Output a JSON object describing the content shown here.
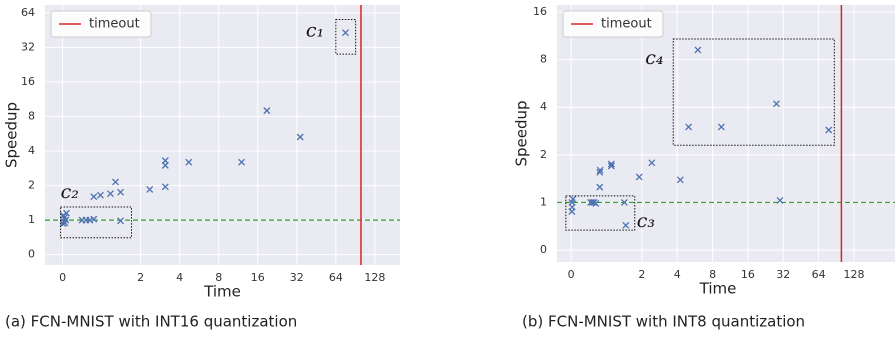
{
  "chart_data": [
    {
      "type": "scatter",
      "caption": "(a) FCN-MNIST with INT16 quantization",
      "xlabel": "Time",
      "ylabel": "Speedup",
      "xscale": "symlog",
      "yscale": "symlog",
      "grid": true,
      "legend": "upper left",
      "xlim": [
        -0.45,
        200
      ],
      "ylim": [
        -0.3,
        75
      ],
      "xticks": [
        0,
        2,
        4,
        8,
        16,
        32,
        64,
        128
      ],
      "yticks": [
        0,
        1,
        2,
        4,
        8,
        16,
        32,
        64
      ],
      "timeout": {
        "name": "timeout",
        "x": 100,
        "color": "#d62728"
      },
      "baseline": {
        "y": 1,
        "color": "#2ca02c"
      },
      "points": {
        "color": "#4c72b0",
        "x": [
          0.02,
          0.03,
          0.05,
          0.01,
          0.08,
          0.1,
          0.06,
          0.5,
          0.6,
          0.7,
          0.8,
          0.8,
          0.97,
          1.17,
          1.28,
          1.4,
          1.4,
          2.35,
          3.1,
          3.1,
          3.1,
          4.7,
          12,
          18.8,
          34,
          76
        ],
        "y": [
          1.1,
          0.95,
          1.05,
          0.9,
          1.0,
          1.15,
          0.92,
          1.0,
          1.0,
          1.0,
          1.02,
          1.6,
          1.65,
          1.7,
          2.15,
          1.75,
          0.98,
          1.85,
          1.95,
          3.0,
          3.3,
          3.2,
          3.2,
          9,
          5.3,
          43
        ]
      },
      "annotations": [
        {
          "text": "c₁",
          "x": [
            64,
            91
          ],
          "y": [
            28,
            56
          ]
        },
        {
          "text": "c₂",
          "x": [
            -0.05,
            1.7
          ],
          "y": [
            0.49,
            1.3
          ]
        }
      ]
    },
    {
      "type": "scatter",
      "caption": "(b) FCN-MNIST with INT8 quantization",
      "xlabel": "Time",
      "ylabel": "Speedup",
      "xscale": "symlog",
      "yscale": "symlog",
      "grid": true,
      "legend": "upper left",
      "xlim": [
        -0.4,
        286
      ],
      "ylim": [
        -0.25,
        17.7
      ],
      "xticks": [
        0,
        2,
        4,
        8,
        16,
        32,
        64,
        128
      ],
      "yticks": [
        0,
        1,
        2,
        4,
        8,
        16
      ],
      "timeout": {
        "name": "timeout",
        "x": 100,
        "color": "#d62728"
      },
      "baseline": {
        "y": 1,
        "color": "#2ca02c"
      },
      "points": {
        "color": "#4c72b0",
        "x": [
          0.02,
          0.03,
          0.02,
          0.05,
          0.55,
          0.6,
          0.65,
          0.7,
          0.81,
          0.82,
          0.81,
          1.1,
          1.1,
          1.46,
          1.42,
          1.9,
          2.43,
          4.25,
          5.0,
          6.0,
          9.5,
          28,
          30,
          78
        ],
        "y": [
          1.0,
          0.9,
          0.81,
          1.05,
          1.0,
          1.0,
          1.0,
          0.98,
          1.55,
          1.6,
          1.25,
          1.7,
          1.75,
          0.52,
          1.0,
          1.45,
          1.78,
          1.39,
          3.0,
          9.2,
          3.0,
          4.2,
          1.03,
          2.87
        ]
      },
      "annotations": [
        {
          "text": "c₃",
          "x": [
            -0.15,
            1.74
          ],
          "y": [
            0.42,
            1.1
          ]
        },
        {
          "text": "c₄",
          "x": [
            3.7,
            87
          ],
          "y": [
            2.3,
            10.8
          ]
        }
      ]
    }
  ]
}
